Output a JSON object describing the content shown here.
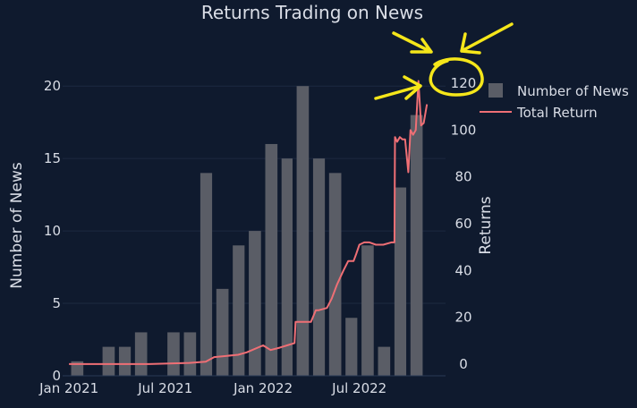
{
  "chart_data": {
    "type": "bar",
    "title": "Returns Trading on News",
    "ylabel_left": "Number of News",
    "ylabel_right": "Returns",
    "x_ticks": [
      "Jan 2021",
      "Jul 2021",
      "Jan 2022",
      "Jul 2022"
    ],
    "x_tick_dates": [
      "2021-01-01",
      "2021-07-01",
      "2022-01-01",
      "2022-07-01"
    ],
    "xlim": [
      "2020-12-20",
      "2022-12-10"
    ],
    "y_left_range": [
      0,
      21
    ],
    "y_left_ticks": [
      0,
      5,
      10,
      15,
      20
    ],
    "y_right_range": [
      -5,
      125
    ],
    "y_right_ticks": [
      0,
      20,
      40,
      60,
      80,
      100,
      120
    ],
    "grid": true,
    "legend_position": "top-right",
    "colors": {
      "background": "#0f1a2e",
      "bars": "#5a5d66",
      "line": "#ef6f75",
      "annotation": "#f5e61a",
      "text": "#d9dde6",
      "grid": "#1c2940"
    },
    "series": [
      {
        "name": "Number of News",
        "type": "bar",
        "x": [
          "2021-01",
          "2021-02",
          "2021-03",
          "2021-04",
          "2021-05",
          "2021-06",
          "2021-07",
          "2021-08",
          "2021-09",
          "2021-10",
          "2021-11",
          "2021-12",
          "2022-01",
          "2022-02",
          "2022-03",
          "2022-04",
          "2022-05",
          "2022-06",
          "2022-07",
          "2022-08",
          "2022-09",
          "2022-10",
          "2022-11"
        ],
        "values": [
          1,
          0,
          2,
          2,
          3,
          0,
          3,
          3,
          14,
          6,
          9,
          10,
          16,
          15,
          20,
          15,
          14,
          4,
          9,
          2,
          13,
          18,
          0
        ]
      },
      {
        "name": "Total Return",
        "type": "line",
        "x": [
          "2021-01-01",
          "2021-03-01",
          "2021-06-01",
          "2021-08-15",
          "2021-09-15",
          "2021-10-01",
          "2021-11-15",
          "2021-12-01",
          "2022-01-01",
          "2022-01-15",
          "2022-02-01",
          "2022-02-15",
          "2022-03-01",
          "2022-03-03",
          "2022-03-15",
          "2022-04-01",
          "2022-04-10",
          "2022-04-15",
          "2022-05-01",
          "2022-05-10",
          "2022-05-20",
          "2022-06-01",
          "2022-06-10",
          "2022-06-20",
          "2022-06-25",
          "2022-07-01",
          "2022-07-10",
          "2022-07-20",
          "2022-08-01",
          "2022-08-15",
          "2022-08-30",
          "2022-09-05",
          "2022-09-06",
          "2022-09-10",
          "2022-09-15",
          "2022-09-20",
          "2022-09-25",
          "2022-10-01",
          "2022-10-05",
          "2022-10-10",
          "2022-10-15",
          "2022-10-20",
          "2022-10-25",
          "2022-10-30",
          "2022-11-05"
        ],
        "values": [
          0,
          0,
          0,
          0.5,
          1,
          3,
          4,
          5,
          8,
          6,
          7,
          8,
          9,
          18,
          18,
          18,
          23,
          23,
          24,
          28,
          34,
          40,
          44,
          44,
          47,
          51,
          52,
          52,
          51,
          51,
          52,
          52,
          97,
          95,
          97,
          96,
          96,
          82,
          100,
          98,
          100,
          121,
          102,
          103,
          111
        ]
      }
    ],
    "annotation": {
      "type": "hand-drawn circle with arrows",
      "highlighted_value": "120"
    }
  }
}
